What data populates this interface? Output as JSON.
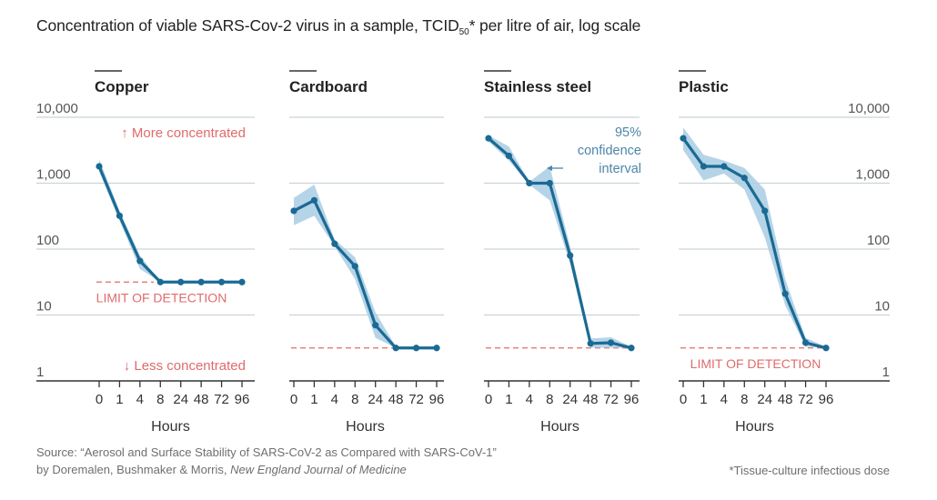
{
  "title": {
    "main": "Concentration of viable SARS-Cov-2 virus in a sample, TCID",
    "subscript": "50",
    "suffix": "* per litre of air, log scale"
  },
  "source": {
    "line1": "Source: “Aerosol and Surface Stability of SARS-CoV-2 as Compared with SARS-CoV-1”",
    "line2_plain": "by Doremalen, Bushmaker & Morris, ",
    "line2_italic": "New England Journal of Medicine"
  },
  "footnote": "*Tissue-culture infectious dose",
  "colors": {
    "line": "#1a6a94",
    "band": "#a9cde3",
    "grid": "#c9d3d9",
    "axis": "#333333",
    "limit": "#e06b6b",
    "annotation_red": "#e06b6b",
    "annotation_blue": "#4d86a8"
  },
  "chart_data": {
    "type": "line",
    "title": "Concentration of viable SARS-Cov-2 virus in a sample, TCID50* per litre of air, log scale",
    "yscale": "log",
    "ylim": [
      1,
      10000
    ],
    "yticks": [
      1,
      10,
      100,
      1000,
      10000
    ],
    "ytick_labels": [
      "1",
      "10",
      "100",
      "1,000",
      "10,000"
    ],
    "xlabel": "Hours",
    "categories": [
      "0",
      "1",
      "4",
      "8",
      "24",
      "48",
      "72",
      "96"
    ],
    "grid": true,
    "panels": [
      {
        "name": "Copper",
        "yaxis_labels": "left",
        "limit_of_detection": 31.6,
        "limit_label": "LIMIT OF DETECTION",
        "annotations": {
          "top": "↑ More concentrated",
          "bottom": "↓ Less concentrated"
        },
        "values": [
          1800,
          320,
          66,
          31.6,
          31.6,
          31.6,
          31.6,
          31.6
        ],
        "ci_low": [
          1500,
          270,
          50,
          31.6,
          31.6,
          31.6,
          31.6,
          31.6
        ],
        "ci_high": [
          2300,
          380,
          80,
          31.6,
          31.6,
          31.6,
          31.6,
          31.6
        ]
      },
      {
        "name": "Cardboard",
        "yaxis_labels": "none",
        "limit_of_detection": 3.16,
        "values": [
          380,
          550,
          120,
          55,
          7,
          3.16,
          3.16,
          3.16
        ],
        "ci_low": [
          230,
          320,
          110,
          35,
          4.5,
          3.16,
          3.16,
          3.16
        ],
        "ci_high": [
          600,
          950,
          140,
          75,
          11,
          3.3,
          3.2,
          3.2
        ]
      },
      {
        "name": "Stainless steel",
        "yaxis_labels": "none",
        "limit_of_detection": 3.16,
        "annotation": "95%\nconfidence\ninterval",
        "values": [
          4800,
          2600,
          1000,
          1000,
          80,
          3.7,
          3.8,
          3.16
        ],
        "ci_low": [
          4300,
          2200,
          950,
          550,
          60,
          3.2,
          3.2,
          3.16
        ],
        "ci_high": [
          5300,
          3600,
          1050,
          1800,
          110,
          4.4,
          4.6,
          3.3
        ]
      },
      {
        "name": "Plastic",
        "yaxis_labels": "right",
        "limit_of_detection": 3.16,
        "limit_label": "LIMIT OF DETECTION",
        "values": [
          4800,
          1800,
          1800,
          1200,
          380,
          21,
          3.8,
          3.16
        ],
        "ci_low": [
          3200,
          1100,
          1400,
          800,
          150,
          14,
          3.3,
          3.16
        ],
        "ci_high": [
          7000,
          2700,
          2200,
          1700,
          800,
          35,
          4.5,
          3.3
        ]
      }
    ]
  }
}
